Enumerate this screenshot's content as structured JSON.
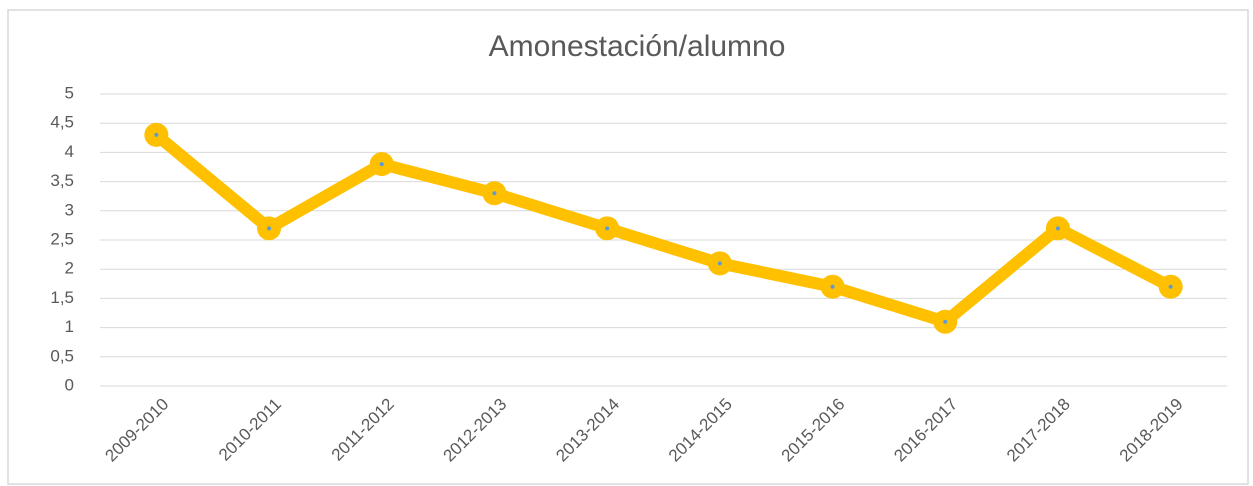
{
  "chart_data": {
    "type": "line",
    "title": "Amonestación/alumno",
    "categories": [
      "2009-2010",
      "2010-2011",
      "2011-2012",
      "2012-2013",
      "2013-2014",
      "2014-2015",
      "2015-2016",
      "2016-2017",
      "2017-2018",
      "2018-2019"
    ],
    "values": [
      4.3,
      2.7,
      3.8,
      3.3,
      2.7,
      2.1,
      1.7,
      1.1,
      2.7,
      1.7
    ],
    "color": "#ffc000",
    "ylim": [
      0,
      5
    ],
    "yticks": [
      0,
      {
        "value": 0.5,
        "label": "0,5"
      },
      1,
      {
        "value": 1.5,
        "label": "1,5"
      },
      2,
      {
        "value": 2.5,
        "label": "2,5"
      },
      3,
      {
        "value": 3.5,
        "label": "3,5"
      },
      4,
      {
        "value": 4.5,
        "label": "4,5"
      },
      5
    ],
    "grid": true
  }
}
